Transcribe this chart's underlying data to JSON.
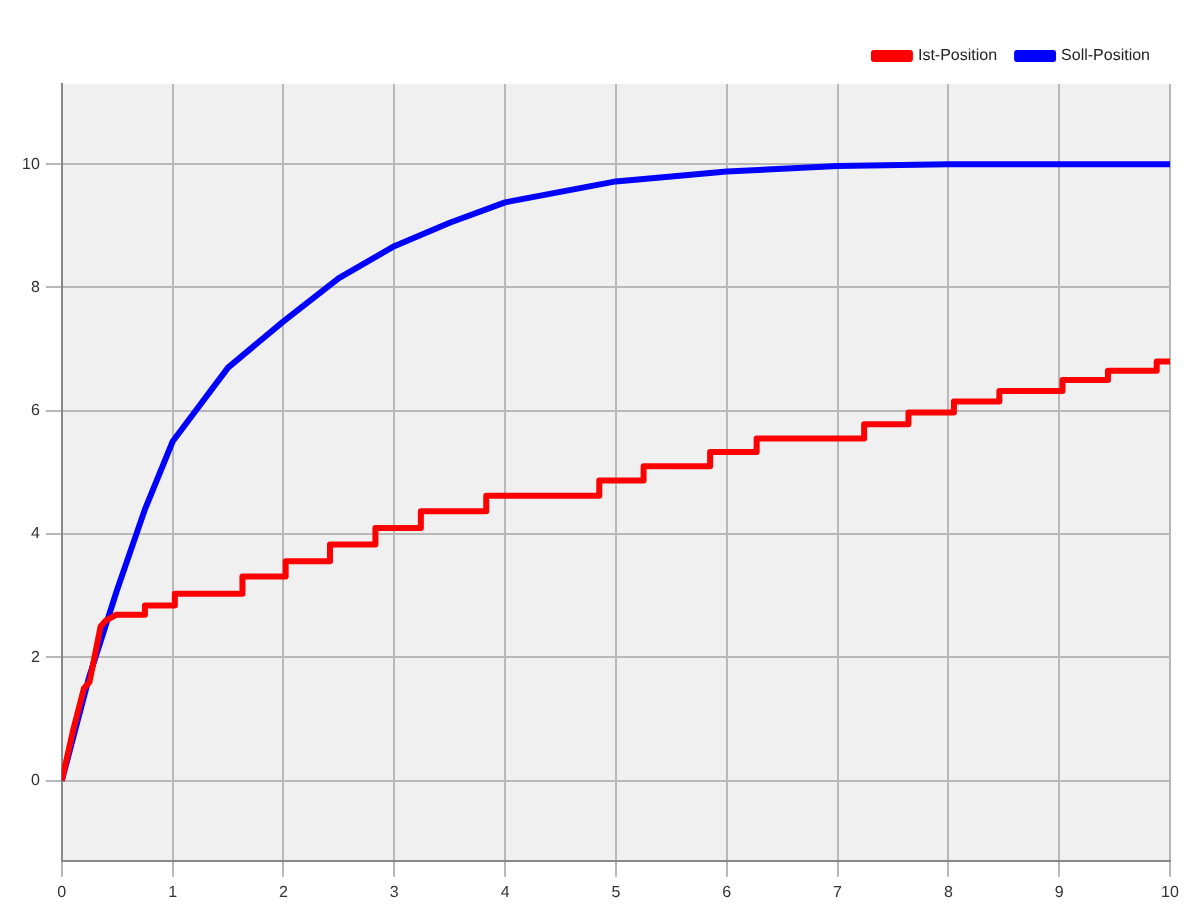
{
  "chart_data": {
    "type": "line",
    "xlim": [
      0,
      10
    ],
    "ylim": [
      -1.3,
      11.3
    ],
    "xticks": [
      0,
      1,
      2,
      3,
      4,
      5,
      6,
      7,
      8,
      9,
      10
    ],
    "yticks": [
      0,
      2,
      4,
      6,
      8,
      10
    ],
    "grid": true,
    "legend": "top right",
    "marker": "none",
    "line_style": "solid",
    "series": [
      {
        "name": "Ist-Position",
        "color": "#ff0000",
        "x": [
          0,
          0.1,
          0.2,
          0.25,
          0.35,
          0.4,
          0.49,
          0.75,
          0.75,
          1.02,
          1.02,
          1.63,
          1.63,
          2.02,
          2.02,
          2.42,
          2.42,
          2.83,
          2.83,
          3.24,
          3.24,
          3.83,
          3.83,
          4.85,
          4.85,
          5.25,
          5.25,
          5.85,
          5.85,
          6.27,
          6.27,
          7.24,
          7.24,
          7.64,
          7.64,
          8.05,
          8.05,
          8.46,
          8.46,
          9.03,
          9.03,
          9.44,
          9.44,
          9.88,
          9.88,
          10
        ],
        "values": [
          0,
          0.8,
          1.5,
          1.6,
          2.5,
          2.6,
          2.69,
          2.69,
          2.84,
          2.84,
          3.03,
          3.03,
          3.31,
          3.31,
          3.56,
          3.56,
          3.83,
          3.83,
          4.1,
          4.1,
          4.37,
          4.37,
          4.62,
          4.62,
          4.87,
          4.87,
          5.1,
          5.1,
          5.33,
          5.33,
          5.55,
          5.55,
          5.78,
          5.78,
          5.97,
          5.97,
          6.15,
          6.15,
          6.32,
          6.32,
          6.5,
          6.5,
          6.65,
          6.65,
          6.8,
          6.8
        ]
      },
      {
        "name": "Soll-Position",
        "color": "#0000ff",
        "x": [
          0,
          0.25,
          0.5,
          0.75,
          1,
          1.5,
          2,
          2.5,
          3,
          3.5,
          4,
          5,
          6,
          7,
          8,
          9,
          10
        ],
        "values": [
          0,
          1.7,
          3.1,
          4.4,
          5.5,
          6.7,
          7.45,
          8.15,
          8.67,
          9.05,
          9.38,
          9.72,
          9.88,
          9.97,
          10,
          10,
          10
        ]
      }
    ]
  }
}
